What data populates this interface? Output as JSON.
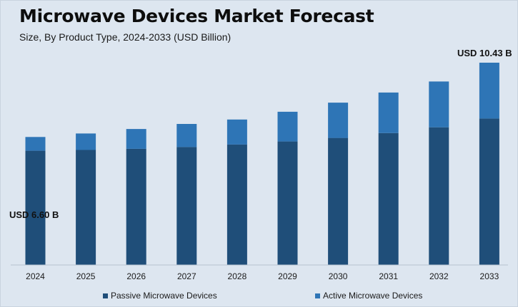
{
  "title": "Microwave Devices Market Forecast",
  "subtitle": "Size, By Product Type, 2024-2033 (USD Billion)",
  "colors": {
    "passive": "#1f4e79",
    "active": "#2e75b6",
    "background": "#dde6f0"
  },
  "legend": {
    "passive_label": "Passive Microwave Devices",
    "active_label": "Active Microwave Devices"
  },
  "annotations": {
    "first": "USD 6.60 B",
    "last": "USD 10.43 B"
  },
  "chart_data": {
    "type": "bar",
    "stacked": true,
    "title": "Microwave Devices Market Forecast",
    "subtitle": "Size, By Product Type, 2024-2033 (USD Billion)",
    "xlabel": "",
    "ylabel": "",
    "categories": [
      "2024",
      "2025",
      "2026",
      "2027",
      "2028",
      "2029",
      "2030",
      "2031",
      "2032",
      "2033"
    ],
    "series": [
      {
        "name": "Passive Microwave Devices",
        "values": [
          5.89,
          5.93,
          5.99,
          6.08,
          6.21,
          6.37,
          6.55,
          6.8,
          7.1,
          7.55
        ]
      },
      {
        "name": "Active Microwave Devices",
        "values": [
          0.71,
          0.85,
          1.02,
          1.19,
          1.29,
          1.53,
          1.82,
          2.09,
          2.36,
          2.88
        ]
      }
    ],
    "totals_labeled": {
      "2024": 6.6,
      "2033": 10.43
    },
    "grid": false,
    "legend_position": "bottom"
  }
}
